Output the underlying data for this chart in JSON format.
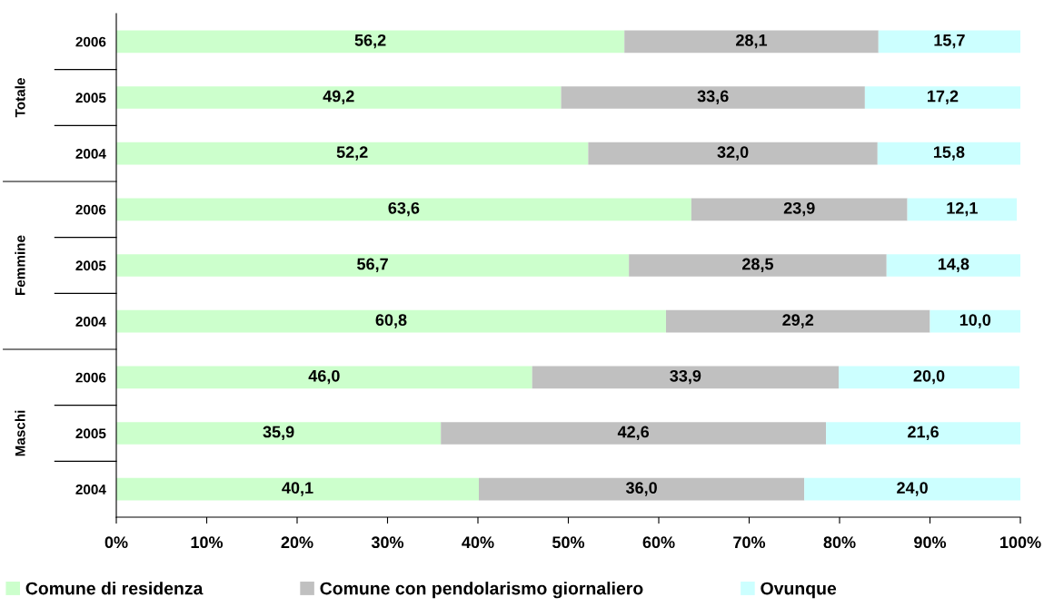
{
  "chart_data": {
    "type": "bar",
    "orientation": "horizontal",
    "stacked": true,
    "categories": [
      "2006",
      "2005",
      "2004",
      "2006",
      "2005",
      "2004",
      "2006",
      "2005",
      "2004"
    ],
    "series": [
      {
        "name": "Comune di residenza",
        "color": "#ccffcc",
        "values": [
          56.2,
          49.2,
          52.2,
          63.6,
          56.7,
          60.8,
          46.0,
          35.9,
          40.1
        ],
        "value_labels": [
          "56,2",
          "49,2",
          "52,2",
          "63,6",
          "56,7",
          "60,8",
          "46,0",
          "35,9",
          "40,1"
        ]
      },
      {
        "name": "Comune con pendolarismo giornaliero",
        "color": "#c0c0c0",
        "values": [
          28.1,
          33.6,
          32.0,
          23.9,
          28.5,
          29.2,
          33.9,
          42.6,
          36.0
        ],
        "value_labels": [
          "28,1",
          "33,6",
          "32,0",
          "23,9",
          "28,5",
          "29,2",
          "33,9",
          "42,6",
          "36,0"
        ]
      },
      {
        "name": "Ovunque",
        "color": "#ccffff",
        "values": [
          15.7,
          17.2,
          15.8,
          12.1,
          14.8,
          10.0,
          20.0,
          21.6,
          24.0
        ],
        "value_labels": [
          "15,7",
          "17,2",
          "15,8",
          "12,1",
          "14,8",
          "10,0",
          "20,0",
          "21,6",
          "24,0"
        ]
      }
    ],
    "xlim": [
      0,
      100
    ],
    "xticks": [
      {
        "value": 0,
        "label": "0%"
      },
      {
        "value": 10,
        "label": "10%"
      },
      {
        "value": 20,
        "label": "20%"
      },
      {
        "value": 30,
        "label": "30%"
      },
      {
        "value": 40,
        "label": "40%"
      },
      {
        "value": 50,
        "label": "50%"
      },
      {
        "value": 60,
        "label": "60%"
      },
      {
        "value": 70,
        "label": "70%"
      },
      {
        "value": 80,
        "label": "80%"
      },
      {
        "value": 90,
        "label": "90%"
      },
      {
        "value": 100,
        "label": "100%"
      }
    ],
    "annotations": [
      "Totale",
      "Femmine",
      "Maschi"
    ],
    "legend": "bottom",
    "grid": false
  }
}
